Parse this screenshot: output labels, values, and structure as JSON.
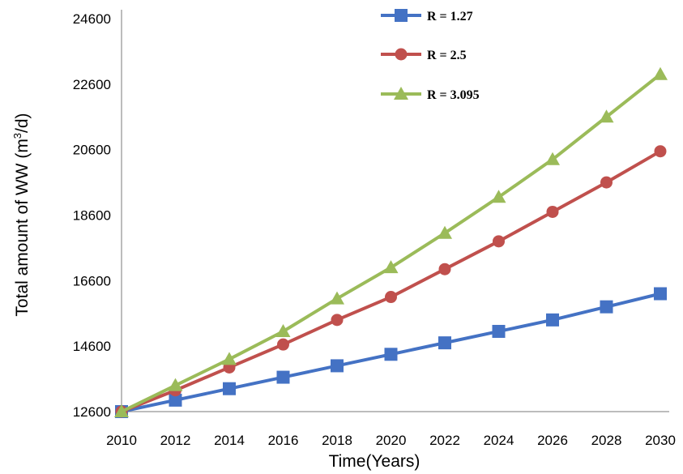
{
  "chart_data": {
    "type": "line",
    "title": "",
    "xlabel": "Time(Years)",
    "ylabel_main": "Total amount of WW (m",
    "ylabel_sup": "3",
    "ylabel_tail": "/d)",
    "x": [
      2010,
      2012,
      2014,
      2016,
      2018,
      2020,
      2022,
      2024,
      2026,
      2028,
      2030
    ],
    "xlim": [
      2010,
      2030
    ],
    "ylim": [
      12600,
      24600
    ],
    "yticks": [
      12600,
      14600,
      16600,
      18600,
      20600,
      22600,
      24600
    ],
    "xticks": [
      2010,
      2012,
      2014,
      2016,
      2018,
      2020,
      2022,
      2024,
      2026,
      2028,
      2030
    ],
    "grid": false,
    "legend_position": "top-center",
    "series": [
      {
        "name": "R = 1.27",
        "color": "#4472c4",
        "marker": "square",
        "values": [
          12600,
          12950,
          13300,
          13650,
          14000,
          14350,
          14700,
          15050,
          15400,
          15800,
          16200
        ]
      },
      {
        "name": "R = 2.5",
        "color": "#c0504d",
        "marker": "circle",
        "values": [
          12600,
          13250,
          13950,
          14650,
          15400,
          16100,
          16950,
          17800,
          18700,
          19600,
          20550
        ]
      },
      {
        "name": "R = 3.095",
        "color": "#9bbb59",
        "marker": "triangle",
        "values": [
          12600,
          13400,
          14200,
          15050,
          16050,
          17000,
          18050,
          19150,
          20300,
          21600,
          22900
        ]
      }
    ]
  }
}
